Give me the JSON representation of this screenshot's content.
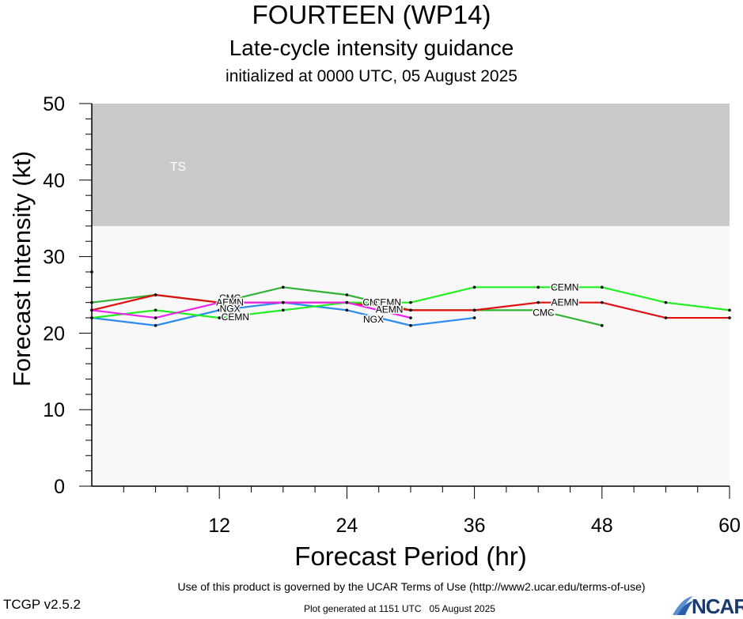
{
  "header": {
    "title": "FOURTEEN (WP14)",
    "subtitle": "Late-cycle intensity guidance",
    "init": "initialized at 0000 UTC, 05 August 2025"
  },
  "footer": {
    "terms": "Use of this product is governed by the UCAR Terms of Use (http://www2.ucar.edu/terms-of-use)",
    "version": "TCGP v2.5.2",
    "generated": "Plot generated at 1151 UTC   05 August 2025",
    "logo": "NCAR"
  },
  "colors": {
    "ts_band": "#c9c9c9",
    "plot_bg": "#f8f8f8",
    "NGX": "#2a8cf0",
    "CMC": "#33b233",
    "AEMN": "#e01010",
    "CEMN": "#22ee22",
    "magenta": "#ee22ee"
  },
  "chart_data": {
    "type": "line",
    "xlabel": "Forecast Period (hr)",
    "ylabel": "Forecast Intensity (kt)",
    "xlim": [
      0,
      60
    ],
    "ylim": [
      0,
      50
    ],
    "xticks": [
      12,
      24,
      36,
      48,
      60
    ],
    "yticks": [
      0,
      10,
      20,
      30,
      40,
      50
    ],
    "bands": [
      {
        "label": "TS",
        "from": 34,
        "to": 50
      }
    ],
    "initial_point": {
      "x": 0,
      "y": 28
    },
    "series": [
      {
        "name": "NGX",
        "x": [
          0,
          6,
          12,
          18,
          24,
          30,
          36
        ],
        "values": [
          22,
          21,
          23,
          24,
          23,
          21,
          22
        ]
      },
      {
        "name": "CMC",
        "x": [
          0,
          6,
          12,
          18,
          24,
          30,
          36,
          42,
          48
        ],
        "values": [
          24,
          25,
          24,
          26,
          25,
          23,
          23,
          23,
          21
        ]
      },
      {
        "name": "AEMN",
        "x": [
          0,
          6,
          12,
          18,
          24,
          30,
          36,
          42,
          48,
          54,
          60
        ],
        "values": [
          23,
          25,
          24,
          24,
          24,
          23,
          23,
          24,
          24,
          22,
          22
        ]
      },
      {
        "name": "CEMN",
        "x": [
          0,
          6,
          12,
          18,
          24,
          30,
          36,
          42,
          48,
          54,
          60
        ],
        "values": [
          22,
          23,
          22,
          23,
          24,
          24,
          26,
          26,
          26,
          24,
          23
        ]
      },
      {
        "name": "",
        "x": [
          0,
          6,
          12,
          18,
          24,
          30
        ],
        "values": [
          23,
          22,
          24,
          24,
          24,
          22
        ]
      }
    ],
    "labels": [
      {
        "text": "CMC",
        "x": 13,
        "y": 24.6
      },
      {
        "text": "AEMN",
        "x": 13,
        "y": 24.0
      },
      {
        "text": "NGX",
        "x": 13,
        "y": 23.2
      },
      {
        "text": "CEMN",
        "x": 13.5,
        "y": 22.1
      },
      {
        "text": "CMC",
        "x": 26.5,
        "y": 24.0
      },
      {
        "text": "CEMN",
        "x": 27.8,
        "y": 24.0
      },
      {
        "text": "AEMN",
        "x": 28,
        "y": 23.1
      },
      {
        "text": "NGX",
        "x": 26.5,
        "y": 21.8
      },
      {
        "text": "CEMN",
        "x": 44.5,
        "y": 26.0
      },
      {
        "text": "AEMN",
        "x": 44.5,
        "y": 24.0
      },
      {
        "text": "CMC",
        "x": 42.5,
        "y": 22.7
      }
    ]
  }
}
